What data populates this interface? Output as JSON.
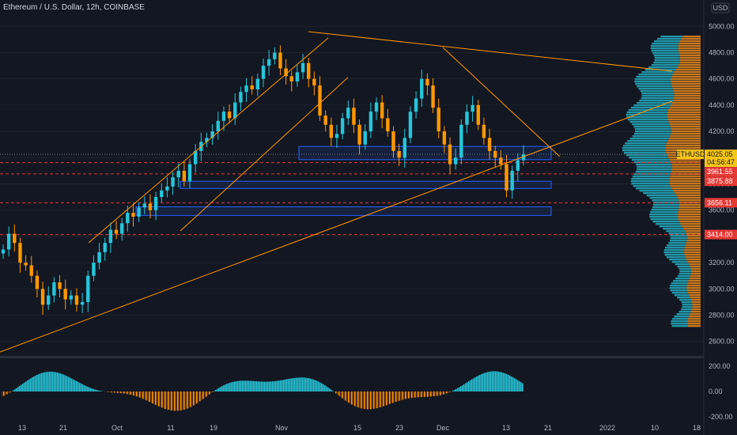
{
  "title": "Ethereum / U.S. Dollar, 12h, COINBASE",
  "currency_label": "USD",
  "colors": {
    "background": "#131722",
    "bull": "#26c6da",
    "bear": "#ff9800",
    "trendline": "#ff9800",
    "dashed_level": "#e53935",
    "box": "#2962ff",
    "volume_profile_up": "#2196a8",
    "volume_profile_down": "#c7781e"
  },
  "chart_data": [
    {
      "type": "line",
      "name": "price",
      "symbol": "ETHUSD",
      "y_axis_ticks": [
        2600,
        2800,
        3000,
        3200,
        3400,
        3600,
        3800,
        4000,
        4200,
        4400,
        4600,
        4800,
        5000
      ],
      "y_tick_labels": [
        "2600.00",
        "2800.00",
        "3000.00",
        "3200.00",
        "3400.00",
        "3600.00",
        "3800.00",
        "4000.00",
        "4200.00",
        "4400.00",
        "4600.00",
        "4800.00",
        "5000.00"
      ],
      "ylim": [
        2550,
        5080
      ],
      "x_tick_labels": [
        "13",
        "21",
        "Oct",
        "11",
        "19",
        "Nov",
        "15",
        "23",
        "Dec",
        "13",
        "21",
        "2022",
        "10",
        "18"
      ],
      "current_price": {
        "symbol": "ETHUSD",
        "value": "4025.05",
        "countdown": "04:56:47"
      },
      "price_labels": [
        {
          "value": "3961.55",
          "color": "#e53935"
        },
        {
          "value": "3875.88",
          "color": "#e53935"
        },
        {
          "value": "3656.11",
          "color": "#e53935"
        },
        {
          "value": "3414.00",
          "color": "#e53935"
        }
      ],
      "levels": [
        3961.55,
        3875.88,
        3656.11,
        3414.0
      ],
      "candles": [
        3300,
        3420,
        3350,
        3200,
        3180,
        3100,
        3000,
        2880,
        2950,
        3050,
        3000,
        2920,
        2950,
        2880,
        2900,
        3100,
        3200,
        3280,
        3350,
        3450,
        3420,
        3500,
        3580,
        3550,
        3620,
        3650,
        3600,
        3700,
        3750,
        3780,
        3850,
        3900,
        3820,
        3950,
        4050,
        4120,
        4150,
        4200,
        4280,
        4350,
        4300,
        4420,
        4500,
        4550,
        4520,
        4600,
        4700,
        4750,
        4800,
        4680,
        4620,
        4580,
        4650,
        4720,
        4600,
        4550,
        4320,
        4250,
        4150,
        4180,
        4300,
        4380,
        4250,
        4100,
        4200,
        4350,
        4420,
        4300,
        4200,
        4050,
        4000,
        4150,
        4350,
        4450,
        4600,
        4550,
        4380,
        4200,
        4100,
        3950,
        4000,
        4250,
        4350,
        4400,
        4250,
        4150,
        4050,
        4000,
        3950,
        3750,
        3900,
        3980,
        4025
      ]
    },
    {
      "type": "bar",
      "name": "oscillator",
      "y_tick_labels": [
        "200.00",
        "0.00",
        "-200.00"
      ],
      "ylim": [
        -250,
        250
      ]
    }
  ]
}
